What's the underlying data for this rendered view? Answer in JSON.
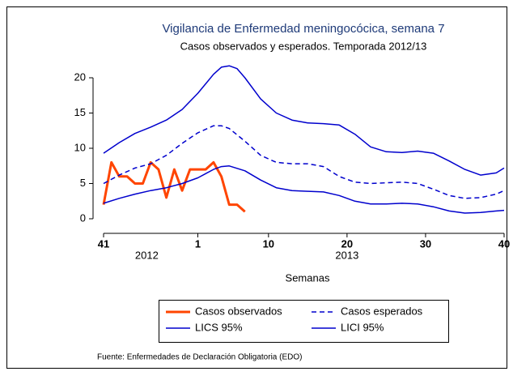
{
  "chart_data": {
    "type": "line",
    "title": "Vigilancia de Enfermedad meningocócica, semana 7",
    "subtitle": "Casos observados y esperados. Temporada 2012/13",
    "xlabel": "Semanas",
    "source": "Fuente: Enfermedades de Declaración Obligatoria (EDO)",
    "xlim": [
      0,
      51
    ],
    "xticks": [
      {
        "value": 0,
        "label": "41"
      },
      {
        "value": 12,
        "label": "1"
      },
      {
        "value": 21,
        "label": "10"
      },
      {
        "value": 31,
        "label": "20"
      },
      {
        "value": 41,
        "label": "30"
      },
      {
        "value": 51,
        "label": "40"
      }
    ],
    "year_labels": [
      {
        "value": 5.5,
        "label": "2012"
      },
      {
        "value": 31,
        "label": "2013"
      }
    ],
    "ylim": [
      0,
      22
    ],
    "yticks": [
      0,
      5,
      10,
      15,
      20
    ],
    "series": [
      {
        "name": "Casos observados",
        "color": "#ff4500",
        "width": 3,
        "dashed": false,
        "x": [
          0,
          1,
          2,
          3,
          4,
          5,
          6,
          7,
          8,
          9,
          10,
          11,
          12,
          13,
          14,
          15,
          16,
          17,
          18
        ],
        "values": [
          2,
          8,
          6,
          6,
          5,
          5,
          8,
          7,
          3,
          7,
          4,
          7,
          7,
          7,
          8,
          6,
          2,
          2,
          1
        ]
      },
      {
        "name": "Casos esperados",
        "color": "#0000cd",
        "width": 1.5,
        "dashed": true,
        "x": [
          0,
          2,
          4,
          6,
          8,
          10,
          12,
          14,
          15,
          16,
          18,
          20,
          22,
          24,
          26,
          28,
          30,
          32,
          34,
          36,
          38,
          40,
          42,
          44,
          46,
          48,
          50,
          51
        ],
        "values": [
          5,
          6.2,
          7.2,
          7.8,
          9,
          10.7,
          12.2,
          13.2,
          13.2,
          12.8,
          11,
          9,
          8,
          7.8,
          7.8,
          7.4,
          6,
          5.2,
          5,
          5.1,
          5.2,
          5,
          4.2,
          3.3,
          2.9,
          3,
          3.5,
          4
        ]
      },
      {
        "name": "LICS 95%",
        "color": "#0000cd",
        "width": 1.5,
        "dashed": false,
        "x": [
          0,
          2,
          4,
          6,
          8,
          10,
          12,
          14,
          15,
          16,
          17,
          18,
          20,
          22,
          24,
          26,
          28,
          30,
          32,
          34,
          36,
          38,
          40,
          42,
          44,
          46,
          48,
          50,
          51
        ],
        "values": [
          9.3,
          10.8,
          12.1,
          13,
          14,
          15.5,
          17.8,
          20.5,
          21.5,
          21.7,
          21.3,
          20,
          17,
          15,
          14,
          13.6,
          13.5,
          13.3,
          12,
          10.2,
          9.5,
          9.4,
          9.6,
          9.3,
          8.2,
          7,
          6.2,
          6.5,
          7.2
        ]
      },
      {
        "name": "LICI 95%",
        "color": "#0000cd",
        "width": 1.5,
        "dashed": false,
        "x": [
          0,
          2,
          4,
          6,
          8,
          10,
          12,
          14,
          15,
          16,
          18,
          20,
          22,
          24,
          26,
          28,
          30,
          32,
          34,
          36,
          38,
          40,
          42,
          44,
          46,
          48,
          50,
          51
        ],
        "values": [
          2.2,
          2.9,
          3.5,
          4,
          4.4,
          5,
          5.8,
          7,
          7.4,
          7.5,
          6.8,
          5.5,
          4.4,
          4,
          3.9,
          3.8,
          3.3,
          2.5,
          2.1,
          2.1,
          2.2,
          2.1,
          1.7,
          1.1,
          0.8,
          0.9,
          1.1,
          1.2
        ]
      }
    ]
  }
}
